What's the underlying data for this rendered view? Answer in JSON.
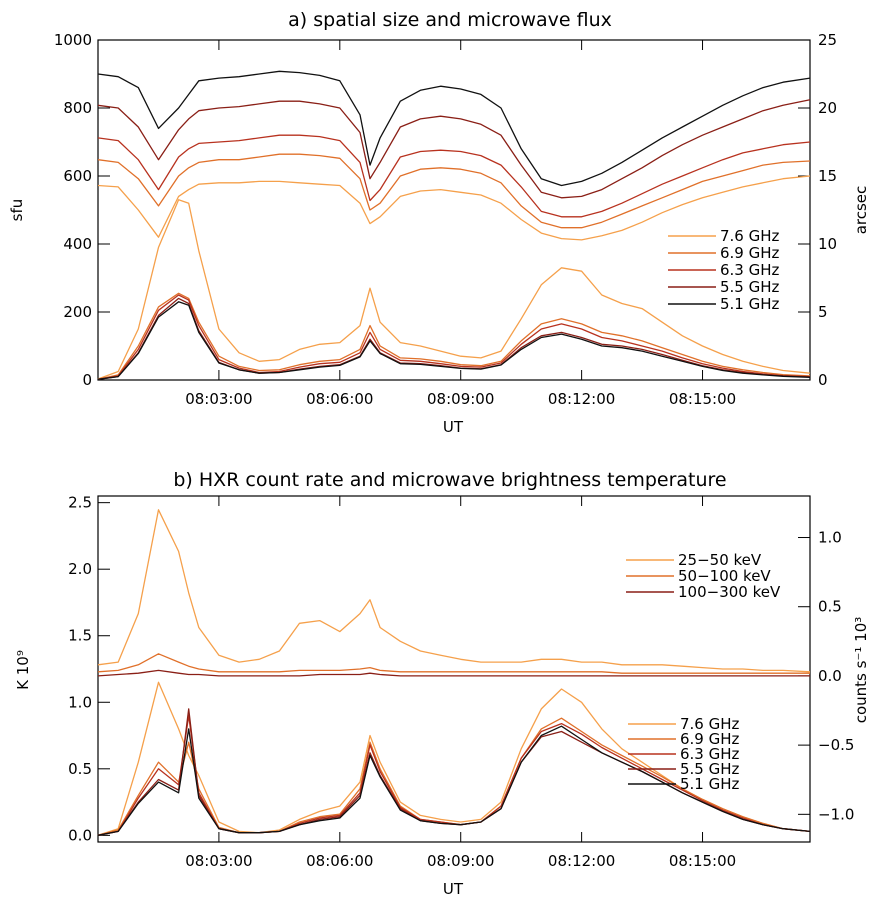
{
  "colors": {
    "c76": "#f5a04b",
    "c69": "#e0702a",
    "c63": "#b8321f",
    "c55": "#8a1f16",
    "c51": "#111111"
  },
  "chart_data": [
    {
      "type": "line",
      "title": "a) spatial size and microwave flux",
      "xlabel": "UT",
      "ylabel": "sfu",
      "y2label": "arcsec",
      "xlim": [
        "08:00:00",
        "08:17:40"
      ],
      "ylim": [
        0,
        1000
      ],
      "y2lim": [
        0,
        25
      ],
      "x_ticks": [
        "08:03:00",
        "08:06:00",
        "08:09:00",
        "08:12:00",
        "08:15:00"
      ],
      "y_ticks": [
        "0",
        "200",
        "400",
        "600",
        "800",
        "1000"
      ],
      "y2_ticks": [
        "0",
        "5",
        "10",
        "15",
        "20",
        "25"
      ],
      "legend_position": "right",
      "legend": [
        "7.6 GHz",
        "6.9 GHz",
        "6.3 GHz",
        "5.5 GHz",
        "5.1 GHz"
      ],
      "x": [
        "08:00:00",
        "08:00:30",
        "08:01:00",
        "08:01:30",
        "08:02:00",
        "08:02:15",
        "08:02:30",
        "08:03:00",
        "08:03:30",
        "08:04:00",
        "08:04:30",
        "08:05:00",
        "08:05:30",
        "08:06:00",
        "08:06:30",
        "08:06:45",
        "08:07:00",
        "08:07:30",
        "08:08:00",
        "08:08:30",
        "08:09:00",
        "08:09:30",
        "08:10:00",
        "08:10:30",
        "08:11:00",
        "08:11:30",
        "08:12:00",
        "08:12:30",
        "08:13:00",
        "08:13:30",
        "08:14:00",
        "08:14:30",
        "08:15:00",
        "08:15:30",
        "08:16:00",
        "08:16:30",
        "08:17:00",
        "08:17:40"
      ],
      "series": [
        {
          "name": "7.6 GHz",
          "axis": "left",
          "values": [
            3,
            25,
            150,
            390,
            530,
            520,
            380,
            150,
            80,
            55,
            60,
            90,
            105,
            110,
            160,
            270,
            170,
            110,
            100,
            85,
            70,
            65,
            85,
            180,
            280,
            330,
            320,
            250,
            225,
            210,
            170,
            130,
            100,
            75,
            55,
            40,
            28,
            20
          ]
        },
        {
          "name": "6.9 GHz",
          "axis": "left",
          "values": [
            2,
            15,
            100,
            215,
            255,
            240,
            170,
            70,
            40,
            28,
            30,
            45,
            55,
            60,
            90,
            160,
            100,
            65,
            62,
            55,
            45,
            42,
            55,
            115,
            165,
            180,
            165,
            140,
            130,
            115,
            95,
            75,
            55,
            40,
            30,
            22,
            16,
            12
          ]
        },
        {
          "name": "6.3 GHz",
          "axis": "left",
          "values": [
            2,
            12,
            90,
            205,
            250,
            235,
            160,
            60,
            35,
            22,
            25,
            38,
            48,
            52,
            80,
            140,
            90,
            58,
            55,
            48,
            40,
            38,
            50,
            105,
            150,
            165,
            150,
            125,
            115,
            100,
            85,
            65,
            48,
            35,
            25,
            18,
            13,
            10
          ]
        },
        {
          "name": "5.5 GHz",
          "axis": "left",
          "values": [
            2,
            10,
            80,
            190,
            240,
            225,
            145,
            52,
            30,
            20,
            22,
            32,
            40,
            45,
            70,
            120,
            80,
            50,
            48,
            42,
            35,
            33,
            45,
            95,
            130,
            140,
            125,
            105,
            100,
            90,
            75,
            58,
            42,
            30,
            22,
            16,
            12,
            9
          ]
        },
        {
          "name": "5.1 GHz",
          "axis": "left",
          "values": [
            2,
            10,
            78,
            185,
            230,
            220,
            140,
            50,
            30,
            20,
            22,
            30,
            38,
            43,
            68,
            115,
            78,
            48,
            46,
            40,
            34,
            32,
            44,
            90,
            125,
            135,
            120,
            100,
            95,
            85,
            70,
            55,
            40,
            28,
            20,
            15,
            11,
            8
          ]
        },
        {
          "name": "size 7.6 GHz",
          "axis": "right",
          "values": [
            14.3,
            14.2,
            12.5,
            10.5,
            13.5,
            14.0,
            14.4,
            14.5,
            14.5,
            14.6,
            14.6,
            14.5,
            14.4,
            14.3,
            13.0,
            11.5,
            12.0,
            13.5,
            13.9,
            14.0,
            13.8,
            13.6,
            13.0,
            11.8,
            10.8,
            10.4,
            10.3,
            10.6,
            11.0,
            11.6,
            12.3,
            12.9,
            13.4,
            13.8,
            14.2,
            14.5,
            14.8,
            15.0
          ]
        },
        {
          "name": "size 6.9 GHz",
          "axis": "right",
          "values": [
            16.2,
            16.0,
            14.8,
            12.8,
            15.0,
            15.6,
            16.0,
            16.2,
            16.2,
            16.4,
            16.6,
            16.6,
            16.5,
            16.3,
            14.8,
            12.5,
            13.0,
            15.0,
            15.5,
            15.6,
            15.5,
            15.2,
            14.5,
            12.8,
            11.6,
            11.2,
            11.2,
            11.6,
            12.2,
            12.8,
            13.4,
            14.0,
            14.6,
            15.0,
            15.4,
            15.8,
            16.0,
            16.1
          ]
        },
        {
          "name": "size 6.3 GHz",
          "axis": "right",
          "values": [
            17.8,
            17.6,
            16.2,
            14.0,
            16.4,
            17.0,
            17.4,
            17.5,
            17.6,
            17.8,
            18.0,
            18.0,
            17.9,
            17.6,
            16.0,
            13.2,
            14.0,
            16.4,
            16.8,
            16.9,
            16.8,
            16.5,
            15.8,
            14.2,
            12.4,
            12.0,
            12.0,
            12.4,
            13.0,
            13.7,
            14.4,
            15.0,
            15.6,
            16.2,
            16.7,
            17.0,
            17.3,
            17.5
          ]
        },
        {
          "name": "size 5.5 GHz",
          "axis": "right",
          "values": [
            20.2,
            20.0,
            18.6,
            16.2,
            18.4,
            19.2,
            19.8,
            20.0,
            20.1,
            20.3,
            20.5,
            20.5,
            20.3,
            20.0,
            18.2,
            14.8,
            16.0,
            18.6,
            19.2,
            19.4,
            19.2,
            18.8,
            18.0,
            15.8,
            13.8,
            13.4,
            13.5,
            14.0,
            14.8,
            15.6,
            16.5,
            17.3,
            18.0,
            18.6,
            19.2,
            19.8,
            20.2,
            20.6
          ]
        },
        {
          "name": "size 5.1 GHz",
          "axis": "right",
          "values": [
            22.5,
            22.3,
            21.5,
            18.5,
            20.0,
            21.0,
            22.0,
            22.2,
            22.3,
            22.5,
            22.7,
            22.6,
            22.4,
            22.0,
            19.5,
            15.8,
            17.8,
            20.5,
            21.3,
            21.6,
            21.4,
            21.0,
            20.0,
            17.0,
            14.8,
            14.3,
            14.6,
            15.2,
            16.0,
            16.9,
            17.8,
            18.6,
            19.4,
            20.2,
            20.9,
            21.5,
            21.9,
            22.2
          ]
        }
      ]
    },
    {
      "type": "line",
      "title": "b) HXR count rate and microwave brightness temperature",
      "xlabel": "UT",
      "ylabel": "K 10⁹",
      "y2label": "counts s⁻¹ 10³",
      "xlim": [
        "08:00:00",
        "08:17:40"
      ],
      "ylim": [
        -0.05,
        2.55
      ],
      "y2lim": [
        -1.2,
        1.3
      ],
      "x_ticks": [
        "08:03:00",
        "08:06:00",
        "08:09:00",
        "08:12:00",
        "08:15:00"
      ],
      "y_ticks": [
        "0.0",
        "0.5",
        "1.0",
        "1.5",
        "2.0",
        "2.5"
      ],
      "y2_ticks": [
        "−1.0",
        "−0.5",
        "0.0",
        "0.5",
        "1.0"
      ],
      "legend_position": "right",
      "legend_hxr": [
        "25−50 keV",
        "50−100 keV",
        "100−300 keV"
      ],
      "legend_mw": [
        "7.6 GHz",
        "6.9 GHz",
        "6.3 GHz",
        "5.5 GHz",
        "5.1 GHz"
      ],
      "x": [
        "08:00:00",
        "08:00:30",
        "08:01:00",
        "08:01:30",
        "08:02:00",
        "08:02:15",
        "08:02:30",
        "08:03:00",
        "08:03:30",
        "08:04:00",
        "08:04:30",
        "08:05:00",
        "08:05:30",
        "08:06:00",
        "08:06:30",
        "08:06:45",
        "08:07:00",
        "08:07:30",
        "08:08:00",
        "08:08:30",
        "08:09:00",
        "08:09:30",
        "08:10:00",
        "08:10:30",
        "08:11:00",
        "08:11:30",
        "08:12:00",
        "08:12:30",
        "08:13:00",
        "08:13:30",
        "08:14:00",
        "08:14:30",
        "08:15:00",
        "08:15:30",
        "08:16:00",
        "08:16:30",
        "08:17:00",
        "08:17:40"
      ],
      "series": [
        {
          "name": "25−50 keV",
          "axis": "right",
          "values": [
            0.08,
            0.1,
            0.45,
            1.2,
            0.9,
            0.6,
            0.35,
            0.15,
            0.1,
            0.12,
            0.18,
            0.38,
            0.4,
            0.32,
            0.45,
            0.55,
            0.35,
            0.25,
            0.18,
            0.15,
            0.12,
            0.1,
            0.1,
            0.1,
            0.12,
            0.12,
            0.1,
            0.1,
            0.08,
            0.08,
            0.08,
            0.07,
            0.06,
            0.05,
            0.05,
            0.04,
            0.04,
            0.03
          ]
        },
        {
          "name": "50−100 keV",
          "axis": "right",
          "values": [
            0.03,
            0.04,
            0.08,
            0.16,
            0.1,
            0.07,
            0.05,
            0.03,
            0.03,
            0.03,
            0.03,
            0.04,
            0.04,
            0.04,
            0.05,
            0.06,
            0.04,
            0.03,
            0.03,
            0.03,
            0.03,
            0.03,
            0.03,
            0.03,
            0.03,
            0.03,
            0.03,
            0.03,
            0.02,
            0.02,
            0.02,
            0.02,
            0.02,
            0.02,
            0.02,
            0.02,
            0.02,
            0.02
          ]
        },
        {
          "name": "100−300 keV",
          "axis": "right",
          "values": [
            0.0,
            0.01,
            0.02,
            0.04,
            0.02,
            0.01,
            0.01,
            0.0,
            0.0,
            0.0,
            0.0,
            0.0,
            0.01,
            0.01,
            0.01,
            0.02,
            0.01,
            0.0,
            0.0,
            0.0,
            0.0,
            0.0,
            0.0,
            0.0,
            0.0,
            0.0,
            0.0,
            0.0,
            0.0,
            0.0,
            0.0,
            0.0,
            0.0,
            0.0,
            0.0,
            0.0,
            0.0,
            0.0
          ]
        },
        {
          "name": "7.6 GHz",
          "axis": "left",
          "values": [
            0.0,
            0.05,
            0.55,
            1.15,
            0.8,
            0.6,
            0.45,
            0.1,
            0.03,
            0.02,
            0.04,
            0.12,
            0.18,
            0.22,
            0.4,
            0.75,
            0.55,
            0.25,
            0.15,
            0.12,
            0.1,
            0.12,
            0.25,
            0.65,
            0.95,
            1.1,
            1.0,
            0.8,
            0.65,
            0.55,
            0.45,
            0.35,
            0.27,
            0.2,
            0.14,
            0.09,
            0.05,
            0.03
          ]
        },
        {
          "name": "6.9 GHz",
          "axis": "left",
          "values": [
            0.0,
            0.04,
            0.3,
            0.55,
            0.4,
            0.7,
            0.35,
            0.06,
            0.02,
            0.02,
            0.03,
            0.1,
            0.14,
            0.16,
            0.35,
            0.7,
            0.5,
            0.22,
            0.12,
            0.1,
            0.08,
            0.1,
            0.22,
            0.58,
            0.8,
            0.88,
            0.78,
            0.68,
            0.6,
            0.52,
            0.44,
            0.35,
            0.27,
            0.2,
            0.14,
            0.09,
            0.05,
            0.03
          ]
        },
        {
          "name": "6.3 GHz",
          "axis": "left",
          "values": [
            0.0,
            0.03,
            0.28,
            0.5,
            0.38,
            0.9,
            0.32,
            0.05,
            0.02,
            0.02,
            0.03,
            0.09,
            0.13,
            0.15,
            0.32,
            0.68,
            0.48,
            0.21,
            0.12,
            0.1,
            0.08,
            0.1,
            0.22,
            0.58,
            0.78,
            0.84,
            0.76,
            0.66,
            0.58,
            0.5,
            0.42,
            0.34,
            0.26,
            0.19,
            0.13,
            0.08,
            0.05,
            0.03
          ]
        },
        {
          "name": "5.5 GHz",
          "axis": "left",
          "values": [
            0.0,
            0.03,
            0.25,
            0.42,
            0.34,
            0.95,
            0.3,
            0.05,
            0.02,
            0.02,
            0.03,
            0.08,
            0.12,
            0.14,
            0.3,
            0.62,
            0.45,
            0.2,
            0.11,
            0.09,
            0.08,
            0.1,
            0.2,
            0.55,
            0.74,
            0.78,
            0.7,
            0.62,
            0.55,
            0.48,
            0.4,
            0.32,
            0.25,
            0.18,
            0.12,
            0.08,
            0.05,
            0.03
          ]
        },
        {
          "name": "5.1 GHz",
          "axis": "left",
          "values": [
            0.0,
            0.03,
            0.24,
            0.4,
            0.32,
            0.8,
            0.28,
            0.05,
            0.02,
            0.02,
            0.03,
            0.08,
            0.11,
            0.13,
            0.28,
            0.6,
            0.44,
            0.19,
            0.11,
            0.09,
            0.08,
            0.1,
            0.2,
            0.55,
            0.75,
            0.82,
            0.72,
            0.62,
            0.55,
            0.48,
            0.4,
            0.32,
            0.25,
            0.18,
            0.12,
            0.08,
            0.05,
            0.03
          ]
        }
      ]
    }
  ]
}
